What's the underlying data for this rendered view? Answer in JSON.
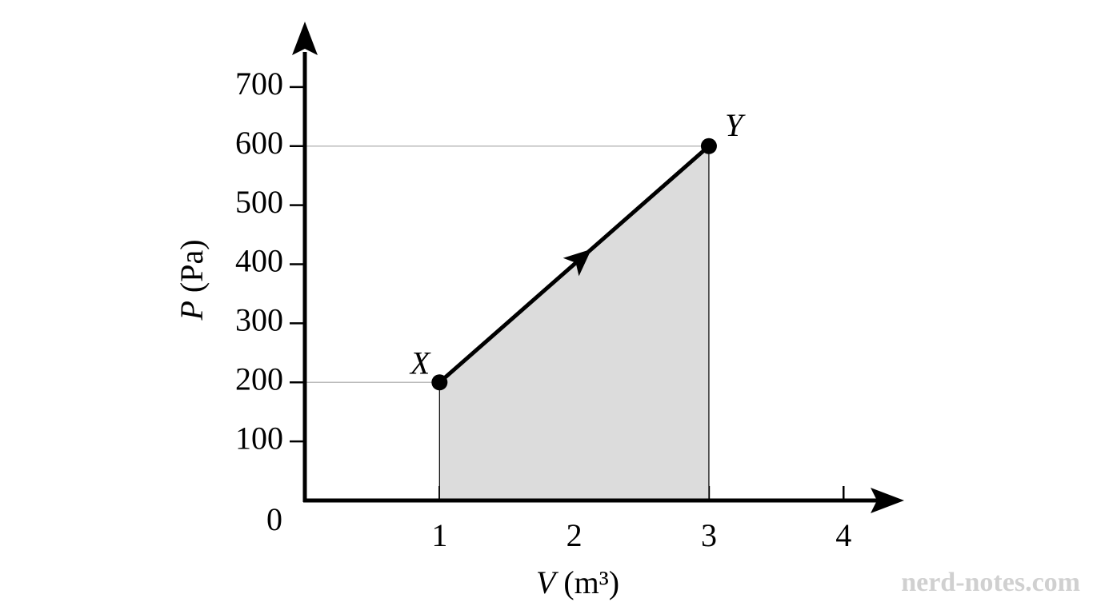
{
  "chart_data": {
    "type": "line",
    "x": [
      1,
      3
    ],
    "values": [
      200,
      600
    ],
    "point_labels": [
      "X",
      "Y"
    ],
    "color": "#000000",
    "fill_color": "#dcdcdc",
    "xlabel": {
      "symbol": "V",
      "unit": "(m³)"
    },
    "ylabel": {
      "symbol": "P",
      "unit": "(Pa)"
    },
    "origin": 0,
    "xlim": [
      0,
      4.45
    ],
    "xticks": [
      1,
      2,
      3,
      4
    ],
    "ylim": [
      0,
      800
    ],
    "yticks": [
      100,
      200,
      300,
      400,
      500,
      600,
      700
    ],
    "watermark": "nerd-notes.com"
  }
}
